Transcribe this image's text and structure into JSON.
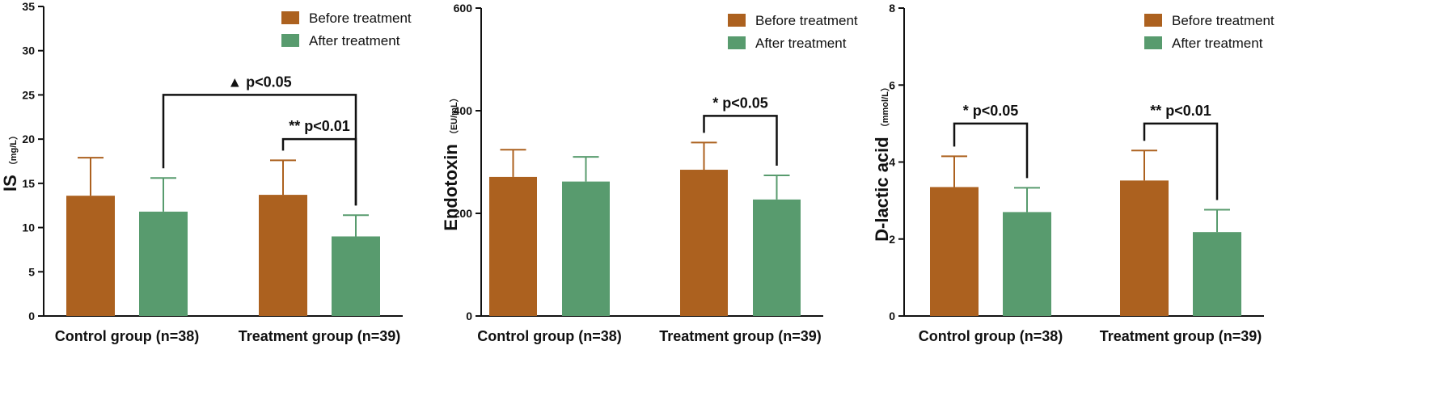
{
  "colors": {
    "before": "#ac611f",
    "after": "#589b6e"
  },
  "chart_data": [
    {
      "type": "bar",
      "categories": [
        "Control group (n=38)",
        "Treatment group (n=39)"
      ],
      "series": [
        {
          "name": "Before treatment",
          "values": [
            13.6,
            13.7
          ],
          "errors": [
            4.3,
            3.9
          ]
        },
        {
          "name": "After treatment",
          "values": [
            11.8,
            9.0
          ],
          "errors": [
            3.8,
            2.4
          ]
        }
      ],
      "ylabel": "IS",
      "yunit": "（mg/L）",
      "ylim": [
        0,
        35
      ],
      "yticks": [
        0,
        5,
        10,
        15,
        20,
        25,
        30,
        35
      ],
      "legend": "top-right",
      "annotations": [
        {
          "text": "▲ p<0.05",
          "from": [
            0,
            1
          ],
          "to": [
            1,
            1
          ],
          "level": 25
        },
        {
          "text": "** p<0.01",
          "from": [
            1,
            0
          ],
          "to": [
            1,
            1
          ],
          "level": 20
        }
      ]
    },
    {
      "type": "bar",
      "categories": [
        "Control group (n=38)",
        "Treatment group (n=39)"
      ],
      "series": [
        {
          "name": "Before treatment",
          "values": [
            271,
            285
          ],
          "errors": [
            53,
            53
          ]
        },
        {
          "name": "After treatment",
          "values": [
            262,
            227
          ],
          "errors": [
            48,
            47
          ]
        }
      ],
      "ylabel": "Endotoxin",
      "yunit": "（EU/mL）",
      "ylim": [
        0,
        600
      ],
      "yticks": [
        0,
        200,
        400,
        600
      ],
      "legend": "top-right",
      "annotations": [
        {
          "text": "* p<0.05",
          "from": [
            1,
            0
          ],
          "to": [
            1,
            1
          ],
          "level": 390
        }
      ]
    },
    {
      "type": "bar",
      "categories": [
        "Control group (n=38)",
        "Treatment group (n=39)"
      ],
      "series": [
        {
          "name": "Before treatment",
          "values": [
            3.35,
            3.52
          ],
          "errors": [
            0.8,
            0.78
          ]
        },
        {
          "name": "After treatment",
          "values": [
            2.7,
            2.18
          ],
          "errors": [
            0.63,
            0.58
          ]
        }
      ],
      "ylabel": "D-lactic acid",
      "yunit": "（mmol/L）",
      "ylim": [
        0,
        8
      ],
      "yticks": [
        0,
        2,
        4,
        6,
        8
      ],
      "legend": "top-right",
      "annotations": [
        {
          "text": "* p<0.05",
          "from": [
            0,
            0
          ],
          "to": [
            0,
            1
          ],
          "level": 5.0
        },
        {
          "text": "** p<0.01",
          "from": [
            1,
            0
          ],
          "to": [
            1,
            1
          ],
          "level": 5.0
        }
      ]
    }
  ]
}
